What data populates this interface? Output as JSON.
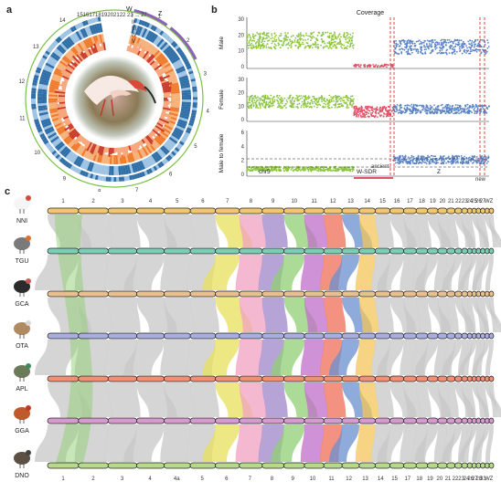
{
  "panels": {
    "a": "a",
    "b": "b",
    "c": "c"
  },
  "circos": {
    "track_labels": [
      "I",
      "II",
      "III",
      "IV",
      "V"
    ],
    "top_chrom_labels": "1516171819202122 23 ... 27",
    "sex_labels": [
      "W",
      "Z"
    ],
    "outer_numbers": [
      "1",
      "2",
      "3",
      "4",
      "5",
      "6",
      "7",
      "8",
      "9",
      "10",
      "11",
      "12",
      "13",
      "14"
    ],
    "colors": {
      "blue_dark": "#2f6ea6",
      "blue_light": "#9cc3e4",
      "orange": "#f07a2a",
      "red": "#c93a2a",
      "green": "#7bc043",
      "purple": "#8a63b5"
    }
  },
  "coverage": {
    "title": "Coverage",
    "rows": [
      {
        "ylabel": "Male",
        "yticks": [
          "30",
          "20",
          "10",
          "0"
        ]
      },
      {
        "ylabel": "Female",
        "yticks": [
          "30",
          "20",
          "10",
          "0"
        ]
      },
      {
        "ylabel": "Male to female",
        "yticks": [
          "6",
          "4",
          "2",
          "0"
        ]
      }
    ],
    "regions": [
      "chr5",
      "W-SDR",
      "Z"
    ],
    "annotations": [
      "ancient",
      "new"
    ],
    "colors": {
      "autosome": "#8cc63f",
      "wsdr": "#e2546a",
      "z": "#5b84c4",
      "guide": "#e0312f"
    }
  },
  "synteny": {
    "species": [
      "NNI",
      "TGU",
      "GCA",
      "OTA",
      "APL",
      "GGA",
      "DNO"
    ],
    "species_colors": [
      "#f1c571",
      "#7dcdb4",
      "#e8c08f",
      "#a9aee0",
      "#ef8f74",
      "#d59bcf",
      "#b6d98a"
    ],
    "top_chroms": [
      "1",
      "2",
      "3",
      "4",
      "5",
      "6",
      "7",
      "8",
      "9",
      "10",
      "11",
      "12",
      "13",
      "14",
      "15",
      "16",
      "17",
      "18",
      "19",
      "20",
      "21",
      "22",
      "23",
      "24",
      "25",
      "26",
      "27",
      "W",
      "Z"
    ],
    "bottom_chroms": [
      "1",
      "2",
      "3",
      "4",
      "4a",
      "5",
      "6",
      "7",
      "8",
      "9",
      "10",
      "11",
      "12",
      "13",
      "14",
      "15",
      "17",
      "18",
      "19",
      "20",
      "21",
      "22",
      "23",
      "24",
      "26",
      "27",
      "28",
      "33",
      "W",
      "Z"
    ],
    "ribbon_colors": [
      "#c7c7c7",
      "#8fcf73",
      "#c06dc8",
      "#ef6e55",
      "#6a8fd0",
      "#f3c65a",
      "#9fd25e",
      "#e8e05b",
      "#f0a2c0",
      "#9d86c9"
    ]
  }
}
